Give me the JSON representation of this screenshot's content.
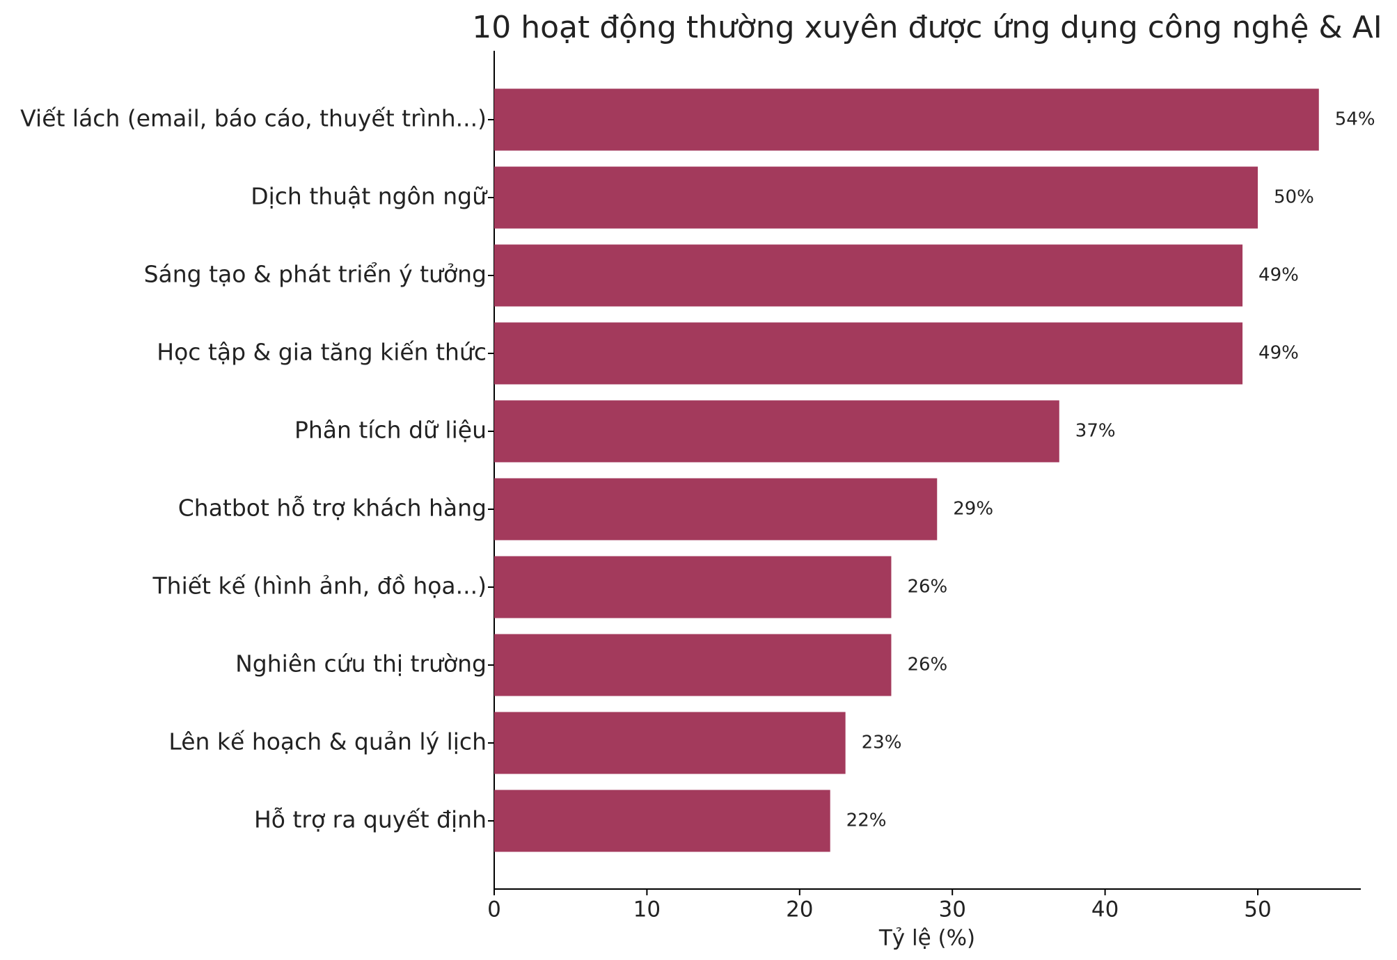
{
  "chart_data": {
    "type": "barh",
    "title": "10 hoạt động thường xuyên được ứng dụng công nghệ & AI",
    "x_label": "Tỷ lệ (%)",
    "categories": [
      "Viết lách (email, báo cáo, thuyết trình...)",
      "Dịch thuật ngôn ngữ",
      "Sáng tạo & phát triển ý tưởng",
      "Học tập & gia tăng kiến thức",
      "Phân tích dữ liệu",
      "Chatbot hỗ trợ khách hàng",
      "Thiết kế (hình ảnh, đồ họa...)",
      "Nghiên cứu thị trường",
      "Lên kế hoạch & quản lý lịch",
      "Hỗ trợ ra quyết định"
    ],
    "values": [
      54,
      50,
      49,
      49,
      37,
      29,
      26,
      26,
      23,
      22
    ],
    "value_labels": [
      "54%",
      "50%",
      "49%",
      "49%",
      "37%",
      "29%",
      "26%",
      "26%",
      "23%",
      "22%"
    ],
    "color": "#a33a5c",
    "xlim": [
      0,
      56.7
    ],
    "xticks": [
      0,
      10,
      20,
      30,
      40,
      50
    ],
    "grid": false
  }
}
